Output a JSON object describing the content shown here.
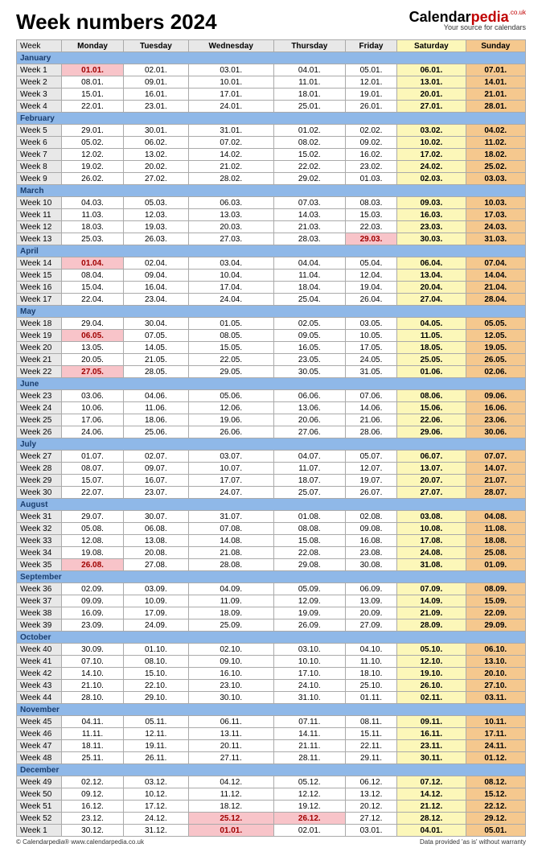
{
  "title": "Week numbers 2024",
  "brand": {
    "cal": "Calendar",
    "pedia": "pedia",
    "couk": ".co.uk",
    "tag": "Your source for calendars"
  },
  "columns": [
    "Week",
    "Monday",
    "Tuesday",
    "Wednesday",
    "Thursday",
    "Friday",
    "Saturday",
    "Sunday"
  ],
  "footer": {
    "left": "© Calendarpedia®   www.calendarpedia.co.uk",
    "right": "Data provided 'as is' without warranty"
  },
  "colors": {
    "month_bg": "#8fb8e8",
    "month_fg": "#1a3d6d",
    "header_bg": "#e8e8e8",
    "sat_bg": "#fcf7b9",
    "sun_bg": "#f5c88e",
    "hol_bg": "#f8c4c9",
    "hol_fg": "#a00000",
    "border": "#aaaaaa"
  },
  "sections": [
    {
      "month": "January",
      "rows": [
        {
          "wk": "Week 1",
          "d": [
            "01.01.",
            "02.01.",
            "03.01.",
            "04.01.",
            "05.01.",
            "06.01.",
            "07.01."
          ],
          "hol": [
            0
          ]
        },
        {
          "wk": "Week 2",
          "d": [
            "08.01.",
            "09.01.",
            "10.01.",
            "11.01.",
            "12.01.",
            "13.01.",
            "14.01."
          ]
        },
        {
          "wk": "Week 3",
          "d": [
            "15.01.",
            "16.01.",
            "17.01.",
            "18.01.",
            "19.01.",
            "20.01.",
            "21.01."
          ]
        },
        {
          "wk": "Week 4",
          "d": [
            "22.01.",
            "23.01.",
            "24.01.",
            "25.01.",
            "26.01.",
            "27.01.",
            "28.01."
          ]
        }
      ]
    },
    {
      "month": "February",
      "rows": [
        {
          "wk": "Week 5",
          "d": [
            "29.01.",
            "30.01.",
            "31.01.",
            "01.02.",
            "02.02.",
            "03.02.",
            "04.02."
          ]
        },
        {
          "wk": "Week 6",
          "d": [
            "05.02.",
            "06.02.",
            "07.02.",
            "08.02.",
            "09.02.",
            "10.02.",
            "11.02."
          ]
        },
        {
          "wk": "Week 7",
          "d": [
            "12.02.",
            "13.02.",
            "14.02.",
            "15.02.",
            "16.02.",
            "17.02.",
            "18.02."
          ]
        },
        {
          "wk": "Week 8",
          "d": [
            "19.02.",
            "20.02.",
            "21.02.",
            "22.02.",
            "23.02.",
            "24.02.",
            "25.02."
          ]
        },
        {
          "wk": "Week 9",
          "d": [
            "26.02.",
            "27.02.",
            "28.02.",
            "29.02.",
            "01.03.",
            "02.03.",
            "03.03."
          ]
        }
      ]
    },
    {
      "month": "March",
      "rows": [
        {
          "wk": "Week 10",
          "d": [
            "04.03.",
            "05.03.",
            "06.03.",
            "07.03.",
            "08.03.",
            "09.03.",
            "10.03."
          ]
        },
        {
          "wk": "Week 11",
          "d": [
            "11.03.",
            "12.03.",
            "13.03.",
            "14.03.",
            "15.03.",
            "16.03.",
            "17.03."
          ]
        },
        {
          "wk": "Week 12",
          "d": [
            "18.03.",
            "19.03.",
            "20.03.",
            "21.03.",
            "22.03.",
            "23.03.",
            "24.03."
          ]
        },
        {
          "wk": "Week 13",
          "d": [
            "25.03.",
            "26.03.",
            "27.03.",
            "28.03.",
            "29.03.",
            "30.03.",
            "31.03."
          ],
          "hol": [
            4
          ]
        }
      ]
    },
    {
      "month": "April",
      "rows": [
        {
          "wk": "Week 14",
          "d": [
            "01.04.",
            "02.04.",
            "03.04.",
            "04.04.",
            "05.04.",
            "06.04.",
            "07.04."
          ],
          "hol": [
            0
          ]
        },
        {
          "wk": "Week 15",
          "d": [
            "08.04.",
            "09.04.",
            "10.04.",
            "11.04.",
            "12.04.",
            "13.04.",
            "14.04."
          ]
        },
        {
          "wk": "Week 16",
          "d": [
            "15.04.",
            "16.04.",
            "17.04.",
            "18.04.",
            "19.04.",
            "20.04.",
            "21.04."
          ]
        },
        {
          "wk": "Week 17",
          "d": [
            "22.04.",
            "23.04.",
            "24.04.",
            "25.04.",
            "26.04.",
            "27.04.",
            "28.04."
          ]
        }
      ]
    },
    {
      "month": "May",
      "rows": [
        {
          "wk": "Week 18",
          "d": [
            "29.04.",
            "30.04.",
            "01.05.",
            "02.05.",
            "03.05.",
            "04.05.",
            "05.05."
          ]
        },
        {
          "wk": "Week 19",
          "d": [
            "06.05.",
            "07.05.",
            "08.05.",
            "09.05.",
            "10.05.",
            "11.05.",
            "12.05."
          ],
          "hol": [
            0
          ]
        },
        {
          "wk": "Week 20",
          "d": [
            "13.05.",
            "14.05.",
            "15.05.",
            "16.05.",
            "17.05.",
            "18.05.",
            "19.05."
          ]
        },
        {
          "wk": "Week 21",
          "d": [
            "20.05.",
            "21.05.",
            "22.05.",
            "23.05.",
            "24.05.",
            "25.05.",
            "26.05."
          ]
        },
        {
          "wk": "Week 22",
          "d": [
            "27.05.",
            "28.05.",
            "29.05.",
            "30.05.",
            "31.05.",
            "01.06.",
            "02.06."
          ],
          "hol": [
            0
          ]
        }
      ]
    },
    {
      "month": "June",
      "rows": [
        {
          "wk": "Week 23",
          "d": [
            "03.06.",
            "04.06.",
            "05.06.",
            "06.06.",
            "07.06.",
            "08.06.",
            "09.06."
          ]
        },
        {
          "wk": "Week 24",
          "d": [
            "10.06.",
            "11.06.",
            "12.06.",
            "13.06.",
            "14.06.",
            "15.06.",
            "16.06."
          ]
        },
        {
          "wk": "Week 25",
          "d": [
            "17.06.",
            "18.06.",
            "19.06.",
            "20.06.",
            "21.06.",
            "22.06.",
            "23.06."
          ]
        },
        {
          "wk": "Week 26",
          "d": [
            "24.06.",
            "25.06.",
            "26.06.",
            "27.06.",
            "28.06.",
            "29.06.",
            "30.06."
          ]
        }
      ]
    },
    {
      "month": "July",
      "rows": [
        {
          "wk": "Week 27",
          "d": [
            "01.07.",
            "02.07.",
            "03.07.",
            "04.07.",
            "05.07.",
            "06.07.",
            "07.07."
          ]
        },
        {
          "wk": "Week 28",
          "d": [
            "08.07.",
            "09.07.",
            "10.07.",
            "11.07.",
            "12.07.",
            "13.07.",
            "14.07."
          ]
        },
        {
          "wk": "Week 29",
          "d": [
            "15.07.",
            "16.07.",
            "17.07.",
            "18.07.",
            "19.07.",
            "20.07.",
            "21.07."
          ]
        },
        {
          "wk": "Week 30",
          "d": [
            "22.07.",
            "23.07.",
            "24.07.",
            "25.07.",
            "26.07.",
            "27.07.",
            "28.07."
          ]
        }
      ]
    },
    {
      "month": "August",
      "rows": [
        {
          "wk": "Week 31",
          "d": [
            "29.07.",
            "30.07.",
            "31.07.",
            "01.08.",
            "02.08.",
            "03.08.",
            "04.08."
          ]
        },
        {
          "wk": "Week 32",
          "d": [
            "05.08.",
            "06.08.",
            "07.08.",
            "08.08.",
            "09.08.",
            "10.08.",
            "11.08."
          ]
        },
        {
          "wk": "Week 33",
          "d": [
            "12.08.",
            "13.08.",
            "14.08.",
            "15.08.",
            "16.08.",
            "17.08.",
            "18.08."
          ]
        },
        {
          "wk": "Week 34",
          "d": [
            "19.08.",
            "20.08.",
            "21.08.",
            "22.08.",
            "23.08.",
            "24.08.",
            "25.08."
          ]
        },
        {
          "wk": "Week 35",
          "d": [
            "26.08.",
            "27.08.",
            "28.08.",
            "29.08.",
            "30.08.",
            "31.08.",
            "01.09."
          ],
          "hol": [
            0
          ]
        }
      ]
    },
    {
      "month": "September",
      "rows": [
        {
          "wk": "Week 36",
          "d": [
            "02.09.",
            "03.09.",
            "04.09.",
            "05.09.",
            "06.09.",
            "07.09.",
            "08.09."
          ]
        },
        {
          "wk": "Week 37",
          "d": [
            "09.09.",
            "10.09.",
            "11.09.",
            "12.09.",
            "13.09.",
            "14.09.",
            "15.09."
          ]
        },
        {
          "wk": "Week 38",
          "d": [
            "16.09.",
            "17.09.",
            "18.09.",
            "19.09.",
            "20.09.",
            "21.09.",
            "22.09."
          ]
        },
        {
          "wk": "Week 39",
          "d": [
            "23.09.",
            "24.09.",
            "25.09.",
            "26.09.",
            "27.09.",
            "28.09.",
            "29.09."
          ]
        }
      ]
    },
    {
      "month": "October",
      "rows": [
        {
          "wk": "Week 40",
          "d": [
            "30.09.",
            "01.10.",
            "02.10.",
            "03.10.",
            "04.10.",
            "05.10.",
            "06.10."
          ]
        },
        {
          "wk": "Week 41",
          "d": [
            "07.10.",
            "08.10.",
            "09.10.",
            "10.10.",
            "11.10.",
            "12.10.",
            "13.10."
          ]
        },
        {
          "wk": "Week 42",
          "d": [
            "14.10.",
            "15.10.",
            "16.10.",
            "17.10.",
            "18.10.",
            "19.10.",
            "20.10."
          ]
        },
        {
          "wk": "Week 43",
          "d": [
            "21.10.",
            "22.10.",
            "23.10.",
            "24.10.",
            "25.10.",
            "26.10.",
            "27.10."
          ]
        },
        {
          "wk": "Week 44",
          "d": [
            "28.10.",
            "29.10.",
            "30.10.",
            "31.10.",
            "01.11.",
            "02.11.",
            "03.11."
          ]
        }
      ]
    },
    {
      "month": "November",
      "rows": [
        {
          "wk": "Week 45",
          "d": [
            "04.11.",
            "05.11.",
            "06.11.",
            "07.11.",
            "08.11.",
            "09.11.",
            "10.11."
          ]
        },
        {
          "wk": "Week 46",
          "d": [
            "11.11.",
            "12.11.",
            "13.11.",
            "14.11.",
            "15.11.",
            "16.11.",
            "17.11."
          ]
        },
        {
          "wk": "Week 47",
          "d": [
            "18.11.",
            "19.11.",
            "20.11.",
            "21.11.",
            "22.11.",
            "23.11.",
            "24.11."
          ]
        },
        {
          "wk": "Week 48",
          "d": [
            "25.11.",
            "26.11.",
            "27.11.",
            "28.11.",
            "29.11.",
            "30.11.",
            "01.12."
          ]
        }
      ]
    },
    {
      "month": "December",
      "rows": [
        {
          "wk": "Week 49",
          "d": [
            "02.12.",
            "03.12.",
            "04.12.",
            "05.12.",
            "06.12.",
            "07.12.",
            "08.12."
          ]
        },
        {
          "wk": "Week 50",
          "d": [
            "09.12.",
            "10.12.",
            "11.12.",
            "12.12.",
            "13.12.",
            "14.12.",
            "15.12."
          ]
        },
        {
          "wk": "Week 51",
          "d": [
            "16.12.",
            "17.12.",
            "18.12.",
            "19.12.",
            "20.12.",
            "21.12.",
            "22.12."
          ]
        },
        {
          "wk": "Week 52",
          "d": [
            "23.12.",
            "24.12.",
            "25.12.",
            "26.12.",
            "27.12.",
            "28.12.",
            "29.12."
          ],
          "hol": [
            2,
            3
          ]
        },
        {
          "wk": "Week 1",
          "d": [
            "30.12.",
            "31.12.",
            "01.01.",
            "02.01.",
            "03.01.",
            "04.01.",
            "05.01."
          ],
          "hol": [
            2
          ]
        }
      ]
    }
  ]
}
